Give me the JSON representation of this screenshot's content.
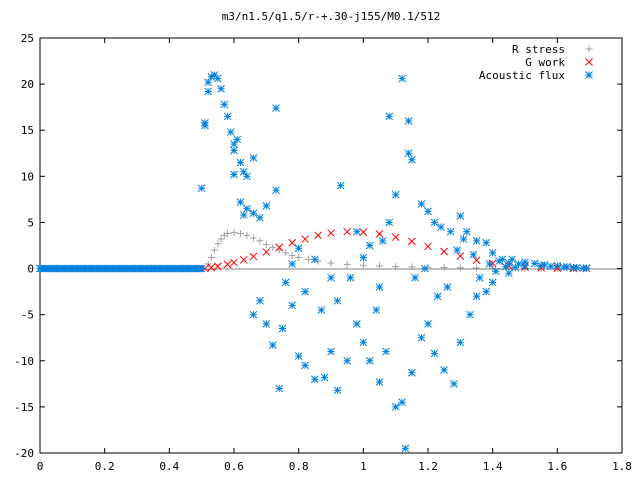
{
  "chart_data": {
    "type": "scatter",
    "title": "m3/n1.5/q1.5/r-+.30-j155/M0.1/512",
    "xlabel": "",
    "ylabel": "",
    "xlim": [
      0,
      1.8
    ],
    "ylim": [
      -20,
      25
    ],
    "x_ticks": [
      0,
      0.2,
      0.4,
      0.6,
      0.8,
      1,
      1.2,
      1.4,
      1.6,
      1.8
    ],
    "x_tick_labels": [
      "0",
      "0.2",
      "0.4",
      "0.6",
      "0.8",
      "1",
      "1.2",
      "1.4",
      "1.6",
      "1.8"
    ],
    "y_ticks": [
      -20,
      -15,
      -10,
      -5,
      0,
      5,
      10,
      15,
      20,
      25
    ],
    "y_tick_labels": [
      "-20",
      "-15",
      "-10",
      "-5",
      "0",
      "5",
      "10",
      "15",
      "20",
      "25"
    ],
    "grid": false,
    "legend_position": "top-right",
    "series": [
      {
        "name": "R stress",
        "marker": "plus",
        "color": "#a0a0a0",
        "points": [
          [
            0.52,
            0.5
          ],
          [
            0.53,
            1.2
          ],
          [
            0.54,
            2.0
          ],
          [
            0.55,
            2.7
          ],
          [
            0.56,
            3.2
          ],
          [
            0.57,
            3.6
          ],
          [
            0.58,
            3.8
          ],
          [
            0.6,
            3.9
          ],
          [
            0.62,
            3.8
          ],
          [
            0.64,
            3.6
          ],
          [
            0.66,
            3.3
          ],
          [
            0.68,
            3.0
          ],
          [
            0.7,
            2.6
          ],
          [
            0.72,
            2.3
          ],
          [
            0.74,
            2.0
          ],
          [
            0.76,
            1.7
          ],
          [
            0.78,
            1.4
          ],
          [
            0.8,
            1.2
          ],
          [
            0.83,
            1.0
          ],
          [
            0.86,
            0.8
          ],
          [
            0.9,
            0.6
          ],
          [
            0.95,
            0.45
          ],
          [
            1.0,
            0.35
          ],
          [
            1.05,
            0.28
          ],
          [
            1.1,
            0.22
          ],
          [
            1.15,
            0.18
          ],
          [
            1.2,
            0.14
          ],
          [
            1.25,
            0.1
          ],
          [
            1.3,
            0.08
          ],
          [
            1.35,
            0.06
          ],
          [
            1.4,
            0.04
          ],
          [
            1.45,
            0.03
          ],
          [
            1.5,
            0.02
          ],
          [
            1.55,
            0.01
          ],
          [
            1.6,
            0.0
          ],
          [
            1.65,
            0.0
          ],
          [
            1.69,
            0.0
          ]
        ]
      },
      {
        "name": "G work",
        "marker": "cross",
        "color": "#ff0000",
        "points": [
          [
            0.51,
            0.0
          ],
          [
            0.53,
            0.1
          ],
          [
            0.55,
            0.25
          ],
          [
            0.58,
            0.45
          ],
          [
            0.6,
            0.65
          ],
          [
            0.63,
            0.95
          ],
          [
            0.66,
            1.3
          ],
          [
            0.7,
            1.8
          ],
          [
            0.74,
            2.3
          ],
          [
            0.78,
            2.8
          ],
          [
            0.82,
            3.2
          ],
          [
            0.86,
            3.6
          ],
          [
            0.9,
            3.85
          ],
          [
            0.95,
            4.0
          ],
          [
            1.0,
            3.95
          ],
          [
            1.05,
            3.75
          ],
          [
            1.1,
            3.4
          ],
          [
            1.15,
            2.95
          ],
          [
            1.2,
            2.4
          ],
          [
            1.25,
            1.85
          ],
          [
            1.3,
            1.35
          ],
          [
            1.35,
            0.9
          ],
          [
            1.4,
            0.55
          ],
          [
            1.45,
            0.3
          ],
          [
            1.5,
            0.15
          ],
          [
            1.55,
            0.07
          ],
          [
            1.6,
            0.03
          ],
          [
            1.65,
            0.01
          ],
          [
            1.69,
            0.0
          ]
        ]
      },
      {
        "name": "Acoustic flux",
        "marker": "star",
        "color": "#0080e0",
        "points": [
          [
            0.0,
            0
          ],
          [
            0.05,
            0
          ],
          [
            0.1,
            0
          ],
          [
            0.15,
            0
          ],
          [
            0.2,
            0
          ],
          [
            0.25,
            0
          ],
          [
            0.3,
            0
          ],
          [
            0.35,
            0
          ],
          [
            0.4,
            0
          ],
          [
            0.45,
            0
          ],
          [
            0.5,
            0
          ],
          [
            0.5,
            8.7
          ],
          [
            0.51,
            15.8
          ],
          [
            0.51,
            15.5
          ],
          [
            0.52,
            19.2
          ],
          [
            0.52,
            20.2
          ],
          [
            0.53,
            20.8
          ],
          [
            0.54,
            21.0
          ],
          [
            0.55,
            20.6
          ],
          [
            0.56,
            19.5
          ],
          [
            0.57,
            17.8
          ],
          [
            0.58,
            16.5
          ],
          [
            0.59,
            14.8
          ],
          [
            0.6,
            13.5
          ],
          [
            0.6,
            12.8
          ],
          [
            0.61,
            14.0
          ],
          [
            0.62,
            11.5
          ],
          [
            0.63,
            10.5
          ],
          [
            0.64,
            10.0
          ],
          [
            0.66,
            12.0
          ],
          [
            0.6,
            10.2
          ],
          [
            0.62,
            7.2
          ],
          [
            0.63,
            5.8
          ],
          [
            0.64,
            6.5
          ],
          [
            0.66,
            6.0
          ],
          [
            0.68,
            5.5
          ],
          [
            0.7,
            6.8
          ],
          [
            0.73,
            8.5
          ],
          [
            0.73,
            17.4
          ],
          [
            0.66,
            -5.0
          ],
          [
            0.68,
            -3.5
          ],
          [
            0.7,
            -6.0
          ],
          [
            0.72,
            -8.3
          ],
          [
            0.74,
            -13.0
          ],
          [
            0.75,
            -6.5
          ],
          [
            0.78,
            -4.0
          ],
          [
            0.8,
            -9.5
          ],
          [
            0.82,
            -10.5
          ],
          [
            0.85,
            -12.0
          ],
          [
            0.88,
            -11.8
          ],
          [
            0.9,
            -9.0
          ],
          [
            0.92,
            -13.2
          ],
          [
            0.95,
            -10.0
          ],
          [
            0.98,
            -6.0
          ],
          [
            1.0,
            -8.0
          ],
          [
            1.02,
            -10.0
          ],
          [
            1.05,
            -12.3
          ],
          [
            1.07,
            -9.0
          ],
          [
            1.1,
            -15.0
          ],
          [
            1.12,
            -14.5
          ],
          [
            1.13,
            -19.5
          ],
          [
            1.15,
            -11.3
          ],
          [
            1.18,
            -7.5
          ],
          [
            1.2,
            -6.0
          ],
          [
            1.22,
            -9.2
          ],
          [
            1.25,
            -11.0
          ],
          [
            1.28,
            -12.5
          ],
          [
            1.3,
            -8.0
          ],
          [
            1.33,
            -5.0
          ],
          [
            1.35,
            -3.0
          ],
          [
            1.38,
            -2.5
          ],
          [
            1.4,
            -1.5
          ],
          [
            1.45,
            -0.5
          ],
          [
            0.8,
            2.2
          ],
          [
            0.85,
            1.0
          ],
          [
            0.9,
            -1.0
          ],
          [
            0.93,
            9.0
          ],
          [
            0.98,
            4.0
          ],
          [
            1.02,
            2.5
          ],
          [
            1.05,
            -2.0
          ],
          [
            1.08,
            5.0
          ],
          [
            1.1,
            8.0
          ],
          [
            1.12,
            20.6
          ],
          [
            1.08,
            16.5
          ],
          [
            1.14,
            16.0
          ],
          [
            1.14,
            12.5
          ],
          [
            1.15,
            11.8
          ],
          [
            1.18,
            7.0
          ],
          [
            1.2,
            6.2
          ],
          [
            1.22,
            5.0
          ],
          [
            1.24,
            4.5
          ],
          [
            1.27,
            4.0
          ],
          [
            1.3,
            5.7
          ],
          [
            1.32,
            4.0
          ],
          [
            1.35,
            3.0
          ],
          [
            1.38,
            2.8
          ],
          [
            1.4,
            1.7
          ],
          [
            1.43,
            1.0
          ],
          [
            1.46,
            1.0
          ],
          [
            1.5,
            0.7
          ],
          [
            1.53,
            0.55
          ],
          [
            1.56,
            0.4
          ],
          [
            1.6,
            0.3
          ],
          [
            1.63,
            0.2
          ],
          [
            1.66,
            0.1
          ],
          [
            1.69,
            0.05
          ],
          [
            1.5,
            0.3
          ],
          [
            1.42,
            0.8
          ],
          [
            1.45,
            0.6
          ],
          [
            1.48,
            0.5
          ],
          [
            1.55,
            0.35
          ],
          [
            1.58,
            0.25
          ],
          [
            1.62,
            0.15
          ],
          [
            1.65,
            0.1
          ],
          [
            1.68,
            0.05
          ],
          [
            0.76,
            -1.5
          ],
          [
            0.78,
            0.5
          ],
          [
            0.82,
            -2.5
          ],
          [
            0.87,
            -4.5
          ],
          [
            0.92,
            -3.5
          ],
          [
            0.96,
            -1.0
          ],
          [
            1.0,
            1.2
          ],
          [
            1.04,
            -4.5
          ],
          [
            1.06,
            3.0
          ],
          [
            1.16,
            -1.0
          ],
          [
            1.19,
            0.0
          ],
          [
            1.23,
            -3.0
          ],
          [
            1.26,
            -2.0
          ],
          [
            1.29,
            2.0
          ],
          [
            1.31,
            3.2
          ],
          [
            1.34,
            1.5
          ],
          [
            1.36,
            -1.0
          ],
          [
            1.39,
            0.5
          ],
          [
            1.41,
            -0.3
          ],
          [
            1.44,
            0.2
          ],
          [
            1.47,
            0.1
          ]
        ]
      }
    ]
  }
}
